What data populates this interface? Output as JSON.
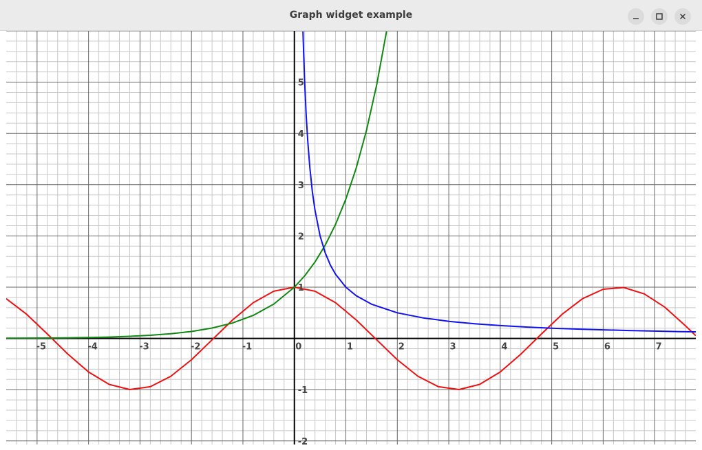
{
  "window": {
    "title": "Graph widget example",
    "controls": {
      "minimize": "minimize-icon",
      "maximize": "maximize-icon",
      "close": "close-icon"
    }
  },
  "chart_data": {
    "type": "line",
    "title": "",
    "xlabel": "",
    "ylabel": "",
    "xlim": [
      -5.6,
      7.8
    ],
    "ylim": [
      -2.07,
      6.0
    ],
    "grid": true,
    "minor_grid_step": 0.2,
    "x_ticks": [
      "-5",
      "-4",
      "-3",
      "-2",
      "-1",
      "0",
      "1",
      "2",
      "3",
      "4",
      "5",
      "6",
      "7"
    ],
    "y_ticks": [
      "-2",
      "-1",
      "1",
      "2",
      "3",
      "4",
      "5"
    ],
    "colors": {
      "axis": "#000000",
      "major_grid": "#666666",
      "minor_grid": "#c8c8c8"
    },
    "series": [
      {
        "color": "#ee1111",
        "x": [
          -5.6,
          -5.2,
          -4.8,
          -4.4,
          -4.0,
          -3.6,
          -3.2,
          -2.8,
          -2.4,
          -2.0,
          -1.6,
          -1.2,
          -0.8,
          -0.4,
          0.0,
          0.4,
          0.8,
          1.2,
          1.6,
          2.0,
          2.4,
          2.8,
          3.2,
          3.6,
          4.0,
          4.4,
          4.8,
          5.2,
          5.6,
          6.0,
          6.4,
          6.8,
          7.2,
          7.6,
          7.8
        ],
        "y": [
          0.776,
          0.469,
          0.087,
          -0.307,
          -0.654,
          -0.897,
          -0.998,
          -0.942,
          -0.737,
          -0.416,
          -0.029,
          0.362,
          0.697,
          0.921,
          1.0,
          0.921,
          0.697,
          0.362,
          -0.029,
          -0.416,
          -0.737,
          -0.942,
          -0.998,
          -0.897,
          -0.654,
          -0.307,
          0.087,
          0.469,
          0.776,
          0.96,
          0.993,
          0.869,
          0.608,
          0.247,
          0.054
        ]
      },
      {
        "color": "#118811",
        "x": [
          -5.6,
          -5.2,
          -4.8,
          -4.4,
          -4.0,
          -3.6,
          -3.2,
          -2.8,
          -2.4,
          -2.0,
          -1.6,
          -1.2,
          -0.8,
          -0.4,
          0.0,
          0.2,
          0.4,
          0.6,
          0.8,
          1.0,
          1.2,
          1.4,
          1.6,
          1.79
        ],
        "y": [
          0.004,
          0.006,
          0.008,
          0.012,
          0.018,
          0.027,
          0.041,
          0.061,
          0.091,
          0.135,
          0.202,
          0.301,
          0.449,
          0.67,
          1.0,
          1.221,
          1.492,
          1.822,
          2.226,
          2.718,
          3.32,
          4.055,
          4.953,
          5.989
        ]
      },
      {
        "color": "#1111ee",
        "x": [
          0.167,
          0.18,
          0.2,
          0.23,
          0.26,
          0.3,
          0.35,
          0.4,
          0.5,
          0.6,
          0.7,
          0.8,
          1.0,
          1.2,
          1.5,
          2.0,
          2.5,
          3.0,
          3.5,
          4.0,
          4.5,
          5.0,
          5.5,
          6.0,
          6.5,
          7.0,
          7.5,
          7.8
        ],
        "y": [
          5.988,
          5.556,
          5.0,
          4.348,
          3.846,
          3.333,
          2.857,
          2.5,
          2.0,
          1.667,
          1.429,
          1.25,
          1.0,
          0.833,
          0.667,
          0.5,
          0.4,
          0.333,
          0.286,
          0.25,
          0.222,
          0.2,
          0.182,
          0.167,
          0.154,
          0.143,
          0.133,
          0.128
        ]
      }
    ]
  }
}
